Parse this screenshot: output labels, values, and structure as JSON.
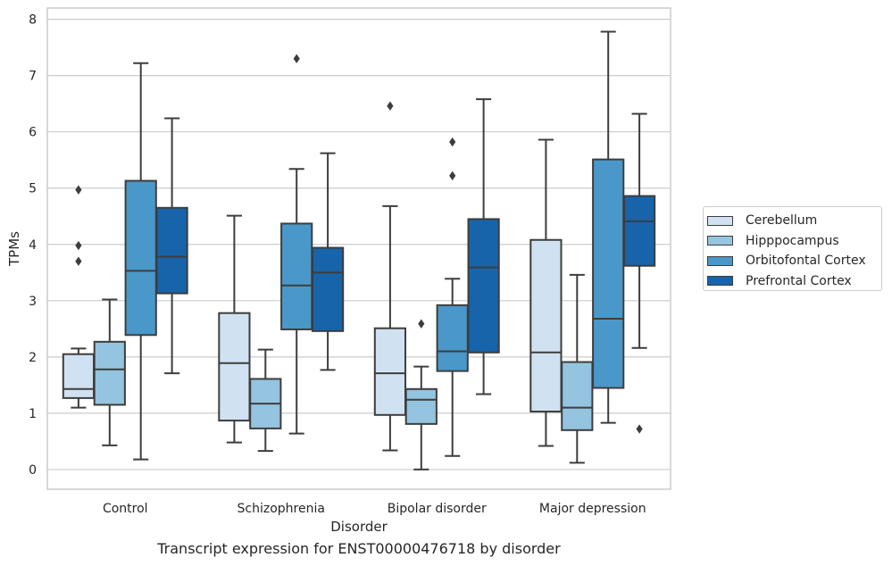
{
  "chart_data": {
    "type": "box",
    "title": "Transcript expression for ENST00000476718 by disorder",
    "xlabel": "Disorder",
    "ylabel": "TPMs",
    "ylim": [
      -0.35,
      8.2
    ],
    "yticks": [
      "0",
      "1",
      "2",
      "3",
      "4",
      "5",
      "6",
      "7",
      "8"
    ],
    "categories": [
      "Control",
      "Schizophrenia",
      "Bipolar disorder",
      "Major depression"
    ],
    "grid": true,
    "legend_position": "right",
    "series": [
      {
        "name": "Cerebellum",
        "color": "#d0e1f2",
        "boxes": [
          {
            "whislo": 1.1,
            "q1": 1.27,
            "med": 1.43,
            "q3": 2.05,
            "whishi": 2.15,
            "fliers": [
              3.7,
              3.98,
              4.97
            ]
          },
          {
            "whislo": 0.48,
            "q1": 0.87,
            "med": 1.89,
            "q3": 2.78,
            "whishi": 4.51,
            "fliers": []
          },
          {
            "whislo": 0.34,
            "q1": 0.97,
            "med": 1.71,
            "q3": 2.51,
            "whishi": 4.68,
            "fliers": [
              6.46
            ]
          },
          {
            "whislo": 0.42,
            "q1": 1.03,
            "med": 2.08,
            "q3": 4.08,
            "whishi": 5.86,
            "fliers": []
          }
        ]
      },
      {
        "name": "Hipppocampus",
        "color": "#94c4df",
        "boxes": [
          {
            "whislo": 0.43,
            "q1": 1.15,
            "med": 1.78,
            "q3": 2.27,
            "whishi": 3.02,
            "fliers": []
          },
          {
            "whislo": 0.33,
            "q1": 0.73,
            "med": 1.17,
            "q3": 1.61,
            "whishi": 2.13,
            "fliers": []
          },
          {
            "whislo": 0.0,
            "q1": 0.81,
            "med": 1.24,
            "q3": 1.43,
            "whishi": 1.83,
            "fliers": [
              2.59
            ]
          },
          {
            "whislo": 0.12,
            "q1": 0.7,
            "med": 1.1,
            "q3": 1.91,
            "whishi": 3.46,
            "fliers": []
          }
        ]
      },
      {
        "name": "Orbitofontal Cortex",
        "color": "#4a98c9",
        "boxes": [
          {
            "whislo": 0.18,
            "q1": 2.39,
            "med": 3.53,
            "q3": 5.13,
            "whishi": 7.22,
            "fliers": []
          },
          {
            "whislo": 0.64,
            "q1": 2.49,
            "med": 3.27,
            "q3": 4.37,
            "whishi": 5.34,
            "fliers": [
              7.3
            ]
          },
          {
            "whislo": 0.24,
            "q1": 1.75,
            "med": 2.1,
            "q3": 2.92,
            "whishi": 3.39,
            "fliers": [
              5.22,
              5.82
            ]
          },
          {
            "whislo": 0.83,
            "q1": 1.45,
            "med": 2.68,
            "q3": 5.51,
            "whishi": 7.78,
            "fliers": []
          }
        ]
      },
      {
        "name": "Prefrontal Cortex",
        "color": "#1764ab",
        "boxes": [
          {
            "whislo": 1.71,
            "q1": 3.13,
            "med": 3.78,
            "q3": 4.65,
            "whishi": 6.24,
            "fliers": []
          },
          {
            "whislo": 1.77,
            "q1": 2.46,
            "med": 3.5,
            "q3": 3.94,
            "whishi": 5.62,
            "fliers": []
          },
          {
            "whislo": 1.34,
            "q1": 2.08,
            "med": 3.59,
            "q3": 4.45,
            "whishi": 6.58,
            "fliers": []
          },
          {
            "whislo": 2.16,
            "q1": 3.62,
            "med": 4.41,
            "q3": 4.86,
            "whishi": 6.32,
            "fliers": [
              0.72
            ]
          }
        ]
      }
    ]
  }
}
